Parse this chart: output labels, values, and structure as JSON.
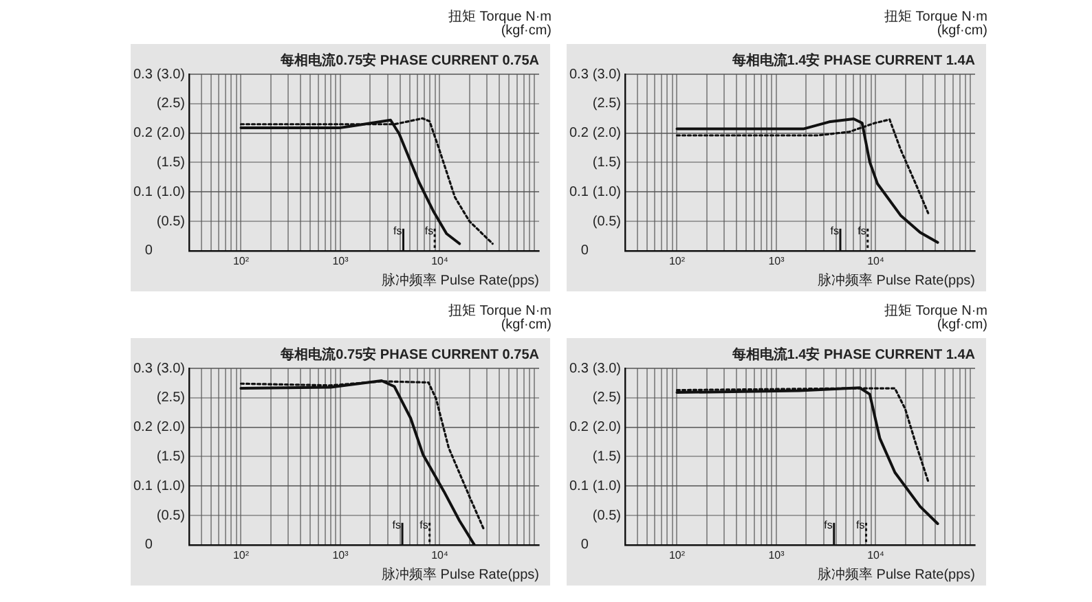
{
  "chart_data": [
    {
      "type": "line",
      "subtitle": "每相电流0.75安 PHASE CURRENT 0.75A",
      "xlabel": "脉冲频率 Pulse Rate(pps)",
      "annotations": [
        "扭矩 Torque N·m\n(kgf·cm)"
      ],
      "log": "x",
      "grid": true,
      "marker": "none",
      "xlim": [
        30,
        100000
      ],
      "ylim": [
        0,
        0.3
      ],
      "y2lim": [
        0,
        3
      ],
      "xticks": [
        {
          "value": 40,
          "label": null
        },
        {
          "value": 50,
          "label": null
        },
        {
          "value": 60,
          "label": null
        },
        {
          "value": 70,
          "label": null
        },
        {
          "value": 80,
          "label": null
        },
        {
          "value": 90,
          "label": null
        },
        {
          "value": 100,
          "label": "10²"
        },
        {
          "value": 200,
          "label": null
        },
        {
          "value": 300,
          "label": null
        },
        {
          "value": 400,
          "label": null
        },
        {
          "value": 500,
          "label": null
        },
        {
          "value": 600,
          "label": null
        },
        {
          "value": 700,
          "label": null
        },
        {
          "value": 800,
          "label": null
        },
        {
          "value": 900,
          "label": null
        },
        {
          "value": 1000,
          "label": "10³"
        },
        {
          "value": 2000,
          "label": null
        },
        {
          "value": 3000,
          "label": null
        },
        {
          "value": 4000,
          "label": null
        },
        {
          "value": 5000,
          "label": null
        },
        {
          "value": 6000,
          "label": null
        },
        {
          "value": 7000,
          "label": null
        },
        {
          "value": 8000,
          "label": null
        },
        {
          "value": 9000,
          "label": null
        },
        {
          "value": 10000,
          "label": "10⁴"
        },
        {
          "value": 20000,
          "label": null
        },
        {
          "value": 30000,
          "label": null
        },
        {
          "value": 40000,
          "label": null
        },
        {
          "value": 50000,
          "label": null
        },
        {
          "value": 60000,
          "label": null
        },
        {
          "value": 70000,
          "label": null
        },
        {
          "value": 80000,
          "label": null
        },
        {
          "value": 90000,
          "label": null
        }
      ],
      "yticks": [
        0,
        0.1,
        0.2,
        0.3
      ],
      "y2ticks": [
        {
          "value": 0.5,
          "label": "(0.5)"
        },
        {
          "value": 1,
          "label": "(1.0)"
        },
        {
          "value": 1.5,
          "label": "(1.5)"
        },
        {
          "value": 2,
          "label": "(2.0)"
        },
        {
          "value": 2.5,
          "label": "(2.5)"
        },
        {
          "value": 3,
          "label": "(3.0)"
        }
      ],
      "series": [
        {
          "color": "#111111",
          "line_style": "solid",
          "x": [
            100,
            1000,
            3200,
            3900,
            6200,
            8700,
            11700,
            15800
          ],
          "values": [
            0.209,
            0.209,
            0.222,
            0.199,
            0.116,
            0.066,
            0.029,
            0.012
          ]
        },
        {
          "color": "#111111",
          "line_style": "dotted",
          "x": [
            100,
            3500,
            4900,
            6700,
            7900,
            9800,
            14200,
            19900,
            34000
          ],
          "values": [
            0.215,
            0.215,
            0.22,
            0.225,
            0.22,
            0.174,
            0.091,
            0.05,
            0.012
          ]
        }
      ],
      "ref_lines": [
        {
          "axis": "x",
          "value": 4300,
          "label": "fs",
          "line_style": "solid"
        },
        {
          "axis": "x",
          "value": 8900,
          "label": "fs",
          "line_style": "dotted"
        }
      ]
    },
    {
      "type": "line",
      "subtitle": "每相电流1.4安 PHASE CURRENT 1.4A",
      "xlabel": "脉冲频率 Pulse Rate(pps)",
      "annotations": [
        "扭矩 Torque N·m\n(kgf·cm)"
      ],
      "log": "x",
      "grid": true,
      "marker": "none",
      "xlim": [
        30,
        100000
      ],
      "ylim": [
        0,
        0.3
      ],
      "y2lim": [
        0,
        3
      ],
      "xticks": [
        {
          "value": 40,
          "label": null
        },
        {
          "value": 50,
          "label": null
        },
        {
          "value": 60,
          "label": null
        },
        {
          "value": 70,
          "label": null
        },
        {
          "value": 80,
          "label": null
        },
        {
          "value": 90,
          "label": null
        },
        {
          "value": 100,
          "label": "10²"
        },
        {
          "value": 200,
          "label": null
        },
        {
          "value": 300,
          "label": null
        },
        {
          "value": 400,
          "label": null
        },
        {
          "value": 500,
          "label": null
        },
        {
          "value": 600,
          "label": null
        },
        {
          "value": 700,
          "label": null
        },
        {
          "value": 800,
          "label": null
        },
        {
          "value": 900,
          "label": null
        },
        {
          "value": 1000,
          "label": "10³"
        },
        {
          "value": 2000,
          "label": null
        },
        {
          "value": 3000,
          "label": null
        },
        {
          "value": 4000,
          "label": null
        },
        {
          "value": 5000,
          "label": null
        },
        {
          "value": 6000,
          "label": null
        },
        {
          "value": 7000,
          "label": null
        },
        {
          "value": 8000,
          "label": null
        },
        {
          "value": 9000,
          "label": null
        },
        {
          "value": 10000,
          "label": "10⁴"
        },
        {
          "value": 20000,
          "label": null
        },
        {
          "value": 30000,
          "label": null
        },
        {
          "value": 40000,
          "label": null
        },
        {
          "value": 50000,
          "label": null
        },
        {
          "value": 60000,
          "label": null
        },
        {
          "value": 70000,
          "label": null
        },
        {
          "value": 80000,
          "label": null
        },
        {
          "value": 90000,
          "label": null
        }
      ],
      "yticks": [
        0,
        0.1,
        0.2,
        0.3
      ],
      "y2ticks": [
        {
          "value": 0.5,
          "label": "(0.5)"
        },
        {
          "value": 1,
          "label": "(1.0)"
        },
        {
          "value": 1.5,
          "label": "(1.5)"
        },
        {
          "value": 2,
          "label": "(2.0)"
        },
        {
          "value": 2.5,
          "label": "(2.5)"
        },
        {
          "value": 3,
          "label": "(3.0)"
        }
      ],
      "series": [
        {
          "color": "#111111",
          "line_style": "solid",
          "x": [
            100,
            1870,
            3400,
            6000,
            7300,
            8700,
            10400,
            17800,
            28000,
            42000
          ],
          "values": [
            0.207,
            0.207,
            0.219,
            0.224,
            0.217,
            0.151,
            0.114,
            0.06,
            0.031,
            0.014
          ]
        },
        {
          "color": "#111111",
          "line_style": "dotted",
          "x": [
            100,
            2600,
            5400,
            9800,
            13800,
            17800,
            25200,
            33700
          ],
          "values": [
            0.196,
            0.196,
            0.202,
            0.217,
            0.223,
            0.172,
            0.114,
            0.064
          ]
        }
      ],
      "ref_lines": [
        {
          "axis": "x",
          "value": 4400,
          "label": "fs",
          "line_style": "solid"
        },
        {
          "axis": "x",
          "value": 8300,
          "label": "fs",
          "line_style": "dotted"
        }
      ]
    },
    {
      "type": "line",
      "subtitle": "每相电流0.75安 PHASE CURRENT 0.75A",
      "xlabel": "脉冲频率 Pulse Rate(pps)",
      "annotations": [
        "扭矩 Torque N·m\n(kgf·cm)"
      ],
      "log": "x",
      "grid": true,
      "marker": "none",
      "xlim": [
        30,
        100000
      ],
      "ylim": [
        0,
        0.3
      ],
      "y2lim": [
        0,
        3
      ],
      "xticks": [
        {
          "value": 40,
          "label": null
        },
        {
          "value": 50,
          "label": null
        },
        {
          "value": 60,
          "label": null
        },
        {
          "value": 70,
          "label": null
        },
        {
          "value": 80,
          "label": null
        },
        {
          "value": 90,
          "label": null
        },
        {
          "value": 100,
          "label": "10²"
        },
        {
          "value": 200,
          "label": null
        },
        {
          "value": 300,
          "label": null
        },
        {
          "value": 400,
          "label": null
        },
        {
          "value": 500,
          "label": null
        },
        {
          "value": 600,
          "label": null
        },
        {
          "value": 700,
          "label": null
        },
        {
          "value": 800,
          "label": null
        },
        {
          "value": 900,
          "label": null
        },
        {
          "value": 1000,
          "label": "10³"
        },
        {
          "value": 2000,
          "label": null
        },
        {
          "value": 3000,
          "label": null
        },
        {
          "value": 4000,
          "label": null
        },
        {
          "value": 5000,
          "label": null
        },
        {
          "value": 6000,
          "label": null
        },
        {
          "value": 7000,
          "label": null
        },
        {
          "value": 8000,
          "label": null
        },
        {
          "value": 9000,
          "label": null
        },
        {
          "value": 10000,
          "label": "10⁴"
        },
        {
          "value": 20000,
          "label": null
        },
        {
          "value": 30000,
          "label": null
        },
        {
          "value": 40000,
          "label": null
        },
        {
          "value": 50000,
          "label": null
        },
        {
          "value": 60000,
          "label": null
        },
        {
          "value": 70000,
          "label": null
        },
        {
          "value": 80000,
          "label": null
        },
        {
          "value": 90000,
          "label": null
        }
      ],
      "yticks": [
        0,
        0.1,
        0.2,
        0.3
      ],
      "y2ticks": [
        {
          "value": 0.5,
          "label": "(0.5)"
        },
        {
          "value": 1,
          "label": "(1.0)"
        },
        {
          "value": 1.5,
          "label": "(1.5)"
        },
        {
          "value": 2,
          "label": "(2.0)"
        },
        {
          "value": 2.5,
          "label": "(2.5)"
        },
        {
          "value": 3,
          "label": "(3.0)"
        }
      ],
      "series": [
        {
          "color": "#111111",
          "line_style": "solid",
          "x": [
            100,
            800,
            2600,
            3500,
            5100,
            6800,
            11000,
            15800,
            22300
          ],
          "values": [
            0.266,
            0.268,
            0.279,
            0.269,
            0.215,
            0.153,
            0.091,
            0.041,
            0
          ]
        },
        {
          "color": "#111111",
          "line_style": "dotted",
          "x": [
            100,
            800,
            2600,
            7700,
            9200,
            12300,
            19800,
            28000
          ],
          "values": [
            0.274,
            0.271,
            0.278,
            0.276,
            0.248,
            0.165,
            0.083,
            0.025
          ]
        }
      ],
      "ref_lines": [
        {
          "axis": "x",
          "value": 4200,
          "label": "fs",
          "line_style": "solid"
        },
        {
          "axis": "x",
          "value": 7900,
          "label": "fs",
          "line_style": "dotted"
        }
      ]
    },
    {
      "type": "line",
      "subtitle": "每相电流1.4安 PHASE CURRENT 1.4A",
      "xlabel": "脉冲频率 Pulse Rate(pps)",
      "annotations": [
        "扭矩 Torque N·m\n(kgf·cm)"
      ],
      "log": "x",
      "grid": true,
      "marker": "none",
      "xlim": [
        30,
        100000
      ],
      "ylim": [
        0,
        0.3
      ],
      "y2lim": [
        0,
        3
      ],
      "xticks": [
        {
          "value": 40,
          "label": null
        },
        {
          "value": 50,
          "label": null
        },
        {
          "value": 60,
          "label": null
        },
        {
          "value": 70,
          "label": null
        },
        {
          "value": 80,
          "label": null
        },
        {
          "value": 90,
          "label": null
        },
        {
          "value": 100,
          "label": "10²"
        },
        {
          "value": 200,
          "label": null
        },
        {
          "value": 300,
          "label": null
        },
        {
          "value": 400,
          "label": null
        },
        {
          "value": 500,
          "label": null
        },
        {
          "value": 600,
          "label": null
        },
        {
          "value": 700,
          "label": null
        },
        {
          "value": 800,
          "label": null
        },
        {
          "value": 900,
          "label": null
        },
        {
          "value": 1000,
          "label": "10³"
        },
        {
          "value": 2000,
          "label": null
        },
        {
          "value": 3000,
          "label": null
        },
        {
          "value": 4000,
          "label": null
        },
        {
          "value": 5000,
          "label": null
        },
        {
          "value": 6000,
          "label": null
        },
        {
          "value": 7000,
          "label": null
        },
        {
          "value": 8000,
          "label": null
        },
        {
          "value": 9000,
          "label": null
        },
        {
          "value": 10000,
          "label": "10⁴"
        },
        {
          "value": 20000,
          "label": null
        },
        {
          "value": 30000,
          "label": null
        },
        {
          "value": 40000,
          "label": null
        },
        {
          "value": 50000,
          "label": null
        },
        {
          "value": 60000,
          "label": null
        },
        {
          "value": 70000,
          "label": null
        },
        {
          "value": 80000,
          "label": null
        },
        {
          "value": 90000,
          "label": null
        }
      ],
      "yticks": [
        0,
        0.1,
        0.2,
        0.3
      ],
      "y2ticks": [
        {
          "value": 0.5,
          "label": "(0.5)"
        },
        {
          "value": 1,
          "label": "(1.0)"
        },
        {
          "value": 1.5,
          "label": "(1.5)"
        },
        {
          "value": 2,
          "label": "(2.0)"
        },
        {
          "value": 2.5,
          "label": "(2.5)"
        },
        {
          "value": 3,
          "label": "(3.0)"
        }
      ],
      "series": [
        {
          "color": "#111111",
          "line_style": "solid",
          "x": [
            100,
            1700,
            6900,
            8700,
            11000,
            15600,
            28000,
            42000
          ],
          "values": [
            0.259,
            0.262,
            0.267,
            0.256,
            0.181,
            0.123,
            0.065,
            0.036
          ]
        },
        {
          "color": "#111111",
          "line_style": "dotted",
          "x": [
            100,
            5400,
            15600,
            19800,
            25200,
            33700
          ],
          "values": [
            0.263,
            0.266,
            0.266,
            0.231,
            0.173,
            0.108
          ]
        }
      ],
      "ref_lines": [
        {
          "axis": "x",
          "value": 3800,
          "label": "fs",
          "line_style": "solid"
        },
        {
          "axis": "x",
          "value": 8000,
          "label": "fs",
          "line_style": "dotted"
        }
      ]
    }
  ]
}
